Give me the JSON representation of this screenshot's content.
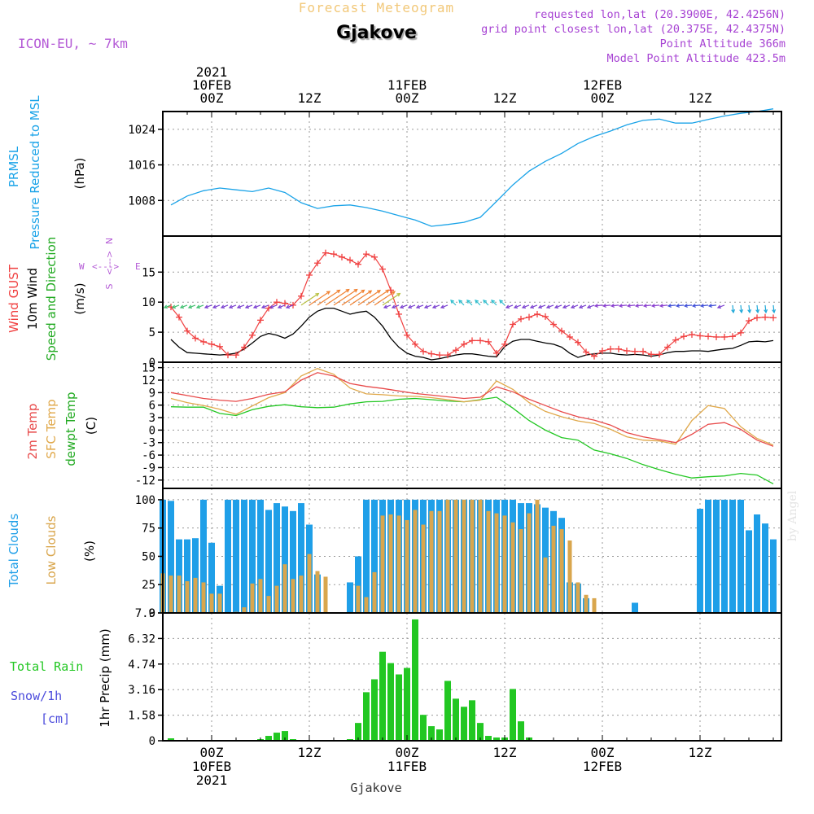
{
  "header": {
    "subtitle": "Forecast Meteogram",
    "title": "Gjakove",
    "model": "ICON-EU, ~ 7km",
    "requested": "requested lon,lat (20.3900E, 42.4256N)",
    "grid_point": "grid point closest lon,lat (20.375E, 42.4375N)",
    "point_altitude": "Point Altitude 366m",
    "model_altitude": "Model Point Altitude 423.5m",
    "watermark": "by Angel",
    "footer_location": "Gjakove"
  },
  "time_axis": {
    "labels": [
      {
        "h": 0,
        "top": [
          "2021",
          "10FEB",
          "00Z"
        ],
        "bottom": [
          "00Z",
          "10FEB",
          "2021"
        ]
      },
      {
        "h": 12,
        "top": [
          "12Z"
        ],
        "bottom": [
          "12Z"
        ]
      },
      {
        "h": 24,
        "top": [
          "11FEB",
          "00Z"
        ],
        "bottom": [
          "00Z",
          "11FEB"
        ]
      },
      {
        "h": 36,
        "top": [
          "12Z"
        ],
        "bottom": [
          "12Z"
        ]
      },
      {
        "h": 48,
        "top": [
          "12FEB",
          "00Z"
        ],
        "bottom": [
          "00Z",
          "12FEB"
        ]
      },
      {
        "h": 60,
        "top": [
          "12Z"
        ],
        "bottom": [
          "12Z"
        ]
      }
    ],
    "range_hours": [
      -6,
      70
    ]
  },
  "colors": {
    "pressure": "#1aa3e8",
    "gust": "#f04040",
    "wind10m": "#000000",
    "temp2m": "#e84a4a",
    "sfc_temp": "#e0a84a",
    "dewpoint": "#22c722",
    "total_clouds": "#1f9fe8",
    "low_clouds": "#d9a64d",
    "rain": "#22c722",
    "snow": "#4b4bdc",
    "direction_label": "#b45ad6"
  },
  "panels": {
    "pressure": {
      "labels": [
        "PRMSL",
        "Pressure Reduced to MSL"
      ],
      "unit": "(hPa)",
      "ticks": [
        "1008",
        "1016",
        "1024"
      ]
    },
    "wind": {
      "labels": [
        "Wind GUST",
        "10m Wind",
        "Speed and Direction"
      ],
      "unit": "(m/s)",
      "ticks": [
        "0",
        "5",
        "10",
        "15"
      ],
      "compass": {
        "n": "N",
        "s": "S",
        "w": "W",
        "e": "E",
        "arrows": "<--->"
      }
    },
    "temperature": {
      "labels": [
        "2m Temp",
        "SFC Temp",
        "dewpt Temp"
      ],
      "unit": "(C)",
      "ticks": [
        "-12",
        "-9",
        "-6",
        "-3",
        "0",
        "3",
        "6",
        "9",
        "12",
        "15"
      ]
    },
    "clouds": {
      "labels": [
        "Total Clouds",
        "Low Clouds"
      ],
      "unit": "(%)",
      "ticks": [
        "0",
        "25",
        "50",
        "75",
        "100"
      ]
    },
    "precip": {
      "labels": [
        "Total  Rain",
        "Snow/1h",
        "[cm]"
      ],
      "unit": "1hr Precip (mm)",
      "ticks": [
        "0",
        "1.58",
        "3.16",
        "4.74",
        "6.32",
        "7.9"
      ]
    }
  },
  "chart_data": [
    {
      "type": "line",
      "title": "PRMSL Pressure Reduced to MSL",
      "ylabel": "(hPa)",
      "ylim": [
        1000,
        1028
      ],
      "x_hours": [
        -5,
        -3,
        -1,
        1,
        3,
        5,
        7,
        9,
        11,
        13,
        15,
        17,
        19,
        21,
        23,
        25,
        27,
        29,
        31,
        33,
        35,
        37,
        39,
        41,
        43,
        45,
        47,
        49,
        51,
        53,
        55,
        57,
        59,
        61,
        63,
        65,
        67,
        69
      ],
      "series": [
        {
          "name": "PRMSL",
          "values": [
            1007.0,
            1009.0,
            1010.2,
            1010.8,
            1010.4,
            1010.0,
            1010.8,
            1009.8,
            1007.5,
            1006.2,
            1006.8,
            1007.0,
            1006.4,
            1005.6,
            1004.6,
            1003.6,
            1002.2,
            1002.6,
            1003.1,
            1004.2,
            1007.8,
            1011.5,
            1014.6,
            1016.8,
            1018.6,
            1020.8,
            1022.4,
            1023.6,
            1025.0,
            1026.0,
            1026.3,
            1025.4,
            1025.4,
            1026.2,
            1027.0,
            1027.6,
            1028.0,
            1028.6
          ]
        }
      ]
    },
    {
      "type": "line",
      "title": "Wind GUST / 10m Wind Speed and Direction",
      "ylabel": "(m/s)",
      "ylim": [
        0,
        20
      ],
      "x_hours": [
        -5,
        -4,
        -3,
        -2,
        -1,
        0,
        1,
        2,
        3,
        4,
        5,
        6,
        7,
        8,
        9,
        10,
        11,
        12,
        13,
        14,
        15,
        16,
        17,
        18,
        19,
        20,
        21,
        22,
        23,
        24,
        25,
        26,
        27,
        28,
        29,
        30,
        31,
        32,
        33,
        34,
        35,
        36,
        37,
        38,
        39,
        40,
        41,
        42,
        43,
        44,
        45,
        46,
        47,
        48,
        49,
        50,
        51,
        52,
        53,
        54,
        55,
        56,
        57,
        58,
        59,
        60,
        61,
        62,
        63,
        64,
        65,
        66,
        67,
        68,
        69
      ],
      "series": [
        {
          "name": "Wind GUST",
          "values": [
            9.2,
            7.5,
            5.2,
            4.0,
            3.4,
            3.0,
            2.6,
            1.2,
            1.2,
            2.5,
            4.5,
            7.0,
            9.0,
            10.0,
            9.8,
            9.5,
            11.0,
            14.5,
            16.5,
            18.2,
            18.0,
            17.5,
            17.0,
            16.3,
            18.0,
            17.5,
            15.5,
            12.0,
            8.0,
            4.5,
            3.0,
            1.8,
            1.4,
            1.2,
            1.2,
            2.0,
            3.0,
            3.6,
            3.6,
            3.4,
            1.5,
            3.0,
            6.3,
            7.2,
            7.5,
            8.0,
            7.6,
            6.3,
            5.2,
            4.2,
            3.3,
            1.7,
            1.0,
            1.9,
            2.2,
            2.2,
            1.9,
            1.8,
            1.8,
            1.3,
            1.3,
            2.5,
            3.7,
            4.3,
            4.6,
            4.4,
            4.3,
            4.2,
            4.2,
            4.3,
            4.9,
            6.9,
            7.4,
            7.5,
            7.4
          ]
        },
        {
          "name": "10m Wind",
          "values": [
            3.8,
            2.5,
            1.6,
            1.5,
            1.4,
            1.3,
            1.2,
            1.3,
            1.5,
            2.2,
            3.2,
            4.3,
            4.8,
            4.5,
            4.0,
            4.7,
            6.0,
            7.5,
            8.5,
            9.0,
            9.0,
            8.5,
            8.0,
            8.3,
            8.5,
            7.5,
            6.0,
            4.0,
            2.5,
            1.5,
            1.0,
            0.8,
            0.4,
            0.6,
            0.9,
            1.2,
            1.4,
            1.4,
            1.2,
            1.0,
            0.9,
            2.6,
            3.5,
            3.8,
            3.8,
            3.5,
            3.2,
            3.0,
            2.5,
            1.5,
            0.8,
            1.2,
            1.4,
            1.5,
            1.5,
            1.3,
            1.2,
            1.3,
            1.2,
            1.0,
            1.2,
            1.6,
            1.8,
            1.8,
            1.9,
            1.9,
            1.8,
            2.0,
            2.2,
            2.3,
            2.8,
            3.4,
            3.5,
            3.4,
            3.6
          ]
        }
      ]
    },
    {
      "type": "line",
      "title": "2m Temp / SFC Temp / dewpt Temp",
      "ylabel": "(C)",
      "ylim": [
        -14,
        16
      ],
      "x_hours": [
        -5,
        -3,
        -1,
        1,
        3,
        5,
        7,
        9,
        11,
        13,
        15,
        17,
        19,
        21,
        23,
        25,
        27,
        29,
        31,
        33,
        35,
        37,
        39,
        41,
        43,
        45,
        47,
        49,
        51,
        53,
        55,
        57,
        59,
        61,
        63,
        65,
        67,
        69
      ],
      "series": [
        {
          "name": "2m Temp",
          "values": [
            9.0,
            8.3,
            7.6,
            7.2,
            6.9,
            7.6,
            8.6,
            9.2,
            12.0,
            13.8,
            13.0,
            11.2,
            10.5,
            10.0,
            9.4,
            8.8,
            8.4,
            8.0,
            7.6,
            7.9,
            10.4,
            9.2,
            7.4,
            5.9,
            4.4,
            3.2,
            2.4,
            1.2,
            -0.6,
            -1.6,
            -2.3,
            -3.0,
            -1.0,
            1.4,
            1.8,
            0.2,
            -2.4,
            -3.9
          ]
        },
        {
          "name": "SFC Temp",
          "values": [
            7.6,
            6.6,
            5.9,
            5.0,
            3.8,
            5.8,
            7.8,
            9.0,
            13.0,
            14.8,
            13.4,
            10.1,
            8.7,
            8.5,
            8.2,
            8.1,
            7.8,
            7.3,
            6.8,
            7.2,
            11.8,
            9.8,
            6.6,
            4.5,
            3.2,
            2.2,
            1.6,
            0.2,
            -1.6,
            -2.4,
            -2.6,
            -3.4,
            2.3,
            5.9,
            5.2,
            0.8,
            -2.0,
            -3.6
          ]
        },
        {
          "name": "dewpt Temp",
          "values": [
            5.6,
            5.5,
            5.5,
            4.0,
            3.5,
            4.9,
            5.7,
            6.1,
            5.6,
            5.4,
            5.5,
            6.3,
            6.8,
            6.9,
            7.4,
            7.6,
            7.3,
            7.0,
            6.8,
            7.3,
            7.9,
            5.3,
            2.3,
            0.0,
            -1.8,
            -2.4,
            -4.8,
            -5.7,
            -6.8,
            -8.3,
            -9.5,
            -10.6,
            -11.5,
            -11.2,
            -11.0,
            -10.4,
            -10.8,
            -12.9
          ]
        }
      ]
    },
    {
      "type": "bar",
      "title": "Total Clouds / Low Clouds",
      "ylabel": "(%)",
      "ylim": [
        0,
        100
      ],
      "x_hours": [
        -6,
        -5,
        -4,
        -3,
        -2,
        -1,
        0,
        1,
        2,
        3,
        4,
        5,
        6,
        7,
        8,
        9,
        10,
        11,
        12,
        13,
        14,
        15,
        16,
        17,
        18,
        19,
        20,
        21,
        22,
        23,
        24,
        25,
        26,
        27,
        28,
        29,
        30,
        31,
        32,
        33,
        34,
        35,
        36,
        37,
        38,
        39,
        40,
        41,
        42,
        43,
        44,
        45,
        46,
        47,
        48,
        49,
        50,
        51,
        52,
        53,
        54,
        55,
        56,
        57,
        58,
        59,
        60,
        61,
        62,
        63,
        64,
        65,
        66,
        67,
        68,
        69
      ],
      "series": [
        {
          "name": "Total Clouds",
          "values": [
            100,
            99,
            65,
            65,
            66,
            100,
            62,
            24,
            100,
            100,
            100,
            100,
            100,
            91,
            97,
            94,
            90,
            97,
            78,
            34,
            0,
            0,
            0,
            27,
            50,
            100,
            100,
            100,
            100,
            100,
            100,
            100,
            100,
            100,
            100,
            100,
            100,
            100,
            100,
            100,
            100,
            100,
            100,
            100,
            97,
            97,
            96,
            93,
            90,
            84,
            27,
            26,
            13,
            0,
            0,
            0,
            0,
            0,
            9,
            0,
            0,
            0,
            0,
            0,
            0,
            0,
            92,
            100,
            100,
            100,
            100,
            100,
            73,
            87,
            79,
            65
          ]
        },
        {
          "name": "Low Clouds",
          "values": [
            35,
            33,
            33,
            28,
            31,
            27,
            17,
            17,
            0,
            1,
            5,
            26,
            30,
            15,
            24,
            43,
            30,
            33,
            52,
            37,
            32,
            0,
            0,
            0,
            24,
            14,
            36,
            86,
            87,
            86,
            82,
            91,
            78,
            90,
            90,
            100,
            100,
            100,
            100,
            100,
            90,
            88,
            86,
            80,
            74,
            88,
            100,
            49,
            77,
            74,
            64,
            27,
            16,
            13,
            0,
            0,
            0,
            0,
            0,
            0,
            0,
            0,
            0,
            0,
            0,
            0,
            0,
            0,
            0,
            0,
            0,
            0,
            0,
            0,
            0,
            0
          ]
        }
      ]
    },
    {
      "type": "bar",
      "title": "Total Rain / Snow 1h",
      "ylabel": "1hr Precip (mm)",
      "ylim": [
        0,
        7.9
      ],
      "x_hours": [
        -6,
        -5,
        -4,
        -3,
        -2,
        -1,
        0,
        1,
        2,
        3,
        4,
        5,
        6,
        7,
        8,
        9,
        10,
        11,
        12,
        13,
        14,
        15,
        16,
        17,
        18,
        19,
        20,
        21,
        22,
        23,
        24,
        25,
        26,
        27,
        28,
        29,
        30,
        31,
        32,
        33,
        34,
        35,
        36,
        37,
        38,
        39,
        40,
        41,
        42,
        43,
        44,
        45,
        46,
        47,
        48,
        49,
        50,
        51,
        52,
        53,
        54,
        55,
        56,
        57,
        58,
        59,
        60,
        61,
        62,
        63,
        64,
        65,
        66,
        67,
        68,
        69
      ],
      "series": [
        {
          "name": "Total Rain",
          "values": [
            0,
            0.15,
            0,
            0,
            0,
            0,
            0,
            0,
            0,
            0,
            0,
            0,
            0.1,
            0.3,
            0.5,
            0.6,
            0.1,
            0,
            0,
            0,
            0,
            0,
            0,
            0.1,
            1.1,
            3.0,
            3.8,
            5.5,
            4.8,
            4.1,
            4.5,
            7.5,
            1.6,
            0.9,
            0.7,
            3.7,
            2.6,
            2.1,
            2.5,
            1.1,
            0.3,
            0.2,
            0.2,
            3.2,
            1.2,
            0.2,
            0,
            0,
            0,
            0,
            0,
            0,
            0,
            0,
            0,
            0,
            0,
            0,
            0,
            0,
            0,
            0,
            0,
            0,
            0,
            0,
            0,
            0,
            0,
            0,
            0,
            0,
            0,
            0,
            0,
            0
          ]
        },
        {
          "name": "Snow/1h",
          "values": [
            0,
            0,
            0,
            0,
            0,
            0,
            0,
            0,
            0,
            0,
            0,
            0,
            0,
            0,
            0,
            0,
            0,
            0,
            0,
            0,
            0,
            0,
            0,
            0,
            0,
            0,
            0,
            0,
            0,
            0,
            0,
            0,
            0,
            0,
            0,
            0,
            0,
            0,
            0,
            0,
            0,
            0,
            0,
            0,
            0,
            0,
            0,
            0,
            0,
            0,
            0,
            0,
            0,
            0,
            0,
            0,
            0,
            0,
            0,
            0,
            0,
            0,
            0,
            0,
            0,
            0,
            0,
            0,
            0,
            0,
            0,
            0,
            0,
            0,
            0,
            0
          ]
        }
      ]
    }
  ]
}
